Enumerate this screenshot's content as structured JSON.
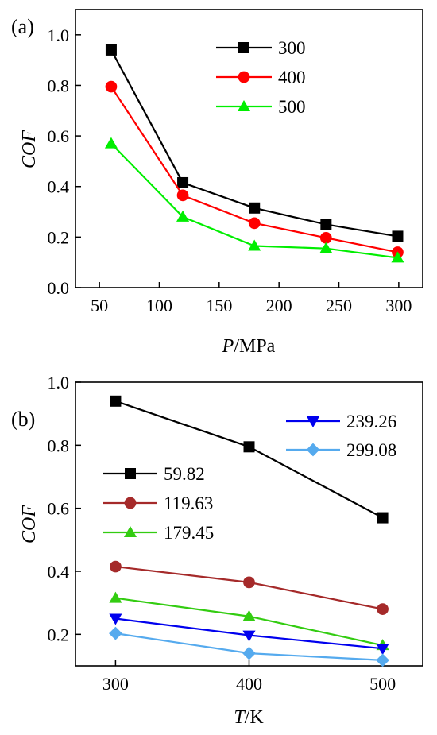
{
  "chart_data": [
    {
      "type": "line",
      "panel_label": "(a)",
      "xlabel_italic": "P",
      "xlabel_unit": "/MPa",
      "ylabel": "COF",
      "xlim": [
        30,
        320
      ],
      "ylim": [
        0.0,
        1.1
      ],
      "xticks": [
        "50",
        "100",
        "150",
        "200",
        "250",
        "300"
      ],
      "xtick_values": [
        50,
        100,
        150,
        200,
        250,
        300
      ],
      "yticks": [
        "0.0",
        "0.2",
        "0.4",
        "0.6",
        "0.8",
        "1.0"
      ],
      "ytick_values": [
        0.0,
        0.2,
        0.4,
        0.6,
        0.8,
        1.0
      ],
      "legend_position": "top-right",
      "x": [
        59.82,
        119.63,
        179.45,
        239.26,
        299.08
      ],
      "series": [
        {
          "name": "300",
          "color": "#000000",
          "marker": "square",
          "values": [
            0.94,
            0.415,
            0.315,
            0.25,
            0.203
          ]
        },
        {
          "name": "400",
          "color": "#ff0000",
          "marker": "circle",
          "values": [
            0.795,
            0.365,
            0.255,
            0.197,
            0.14
          ]
        },
        {
          "name": "500",
          "color": "#00ee00",
          "marker": "triangle-up",
          "values": [
            0.57,
            0.28,
            0.165,
            0.155,
            0.118
          ]
        }
      ]
    },
    {
      "type": "line",
      "panel_label": "(b)",
      "xlabel_italic": "T",
      "xlabel_unit": "/K",
      "ylabel": "COF",
      "xlim": [
        270,
        530
      ],
      "ylim": [
        0.1,
        1.0
      ],
      "xticks": [
        "300",
        "400",
        "500"
      ],
      "xtick_values": [
        300,
        400,
        500
      ],
      "yticks": [
        "0.2",
        "0.4",
        "0.6",
        "0.8",
        "1.0"
      ],
      "ytick_values": [
        0.2,
        0.4,
        0.6,
        0.8,
        1.0
      ],
      "legend_position": "split: top-right and middle-left",
      "x": [
        300,
        400,
        500
      ],
      "series": [
        {
          "name": "59.82",
          "color": "#000000",
          "marker": "square",
          "values": [
            0.94,
            0.795,
            0.57
          ]
        },
        {
          "name": "119.63",
          "color": "#a52a2a",
          "marker": "circle",
          "values": [
            0.415,
            0.365,
            0.28
          ]
        },
        {
          "name": "179.45",
          "color": "#33cc11",
          "marker": "triangle-up",
          "values": [
            0.315,
            0.257,
            0.165
          ]
        },
        {
          "name": "239.26",
          "color": "#0000ee",
          "marker": "triangle-down",
          "values": [
            0.25,
            0.197,
            0.155
          ]
        },
        {
          "name": "299.08",
          "color": "#55aaee",
          "marker": "diamond",
          "values": [
            0.203,
            0.14,
            0.118
          ]
        }
      ]
    }
  ]
}
